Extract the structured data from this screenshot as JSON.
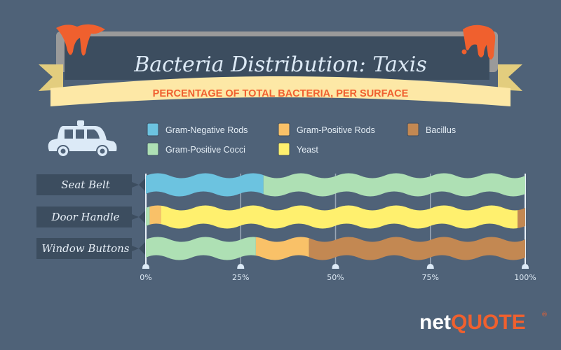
{
  "chart_data": {
    "type": "bar",
    "orientation": "horizontal",
    "stacked": true,
    "title": "Bacteria Distribution: Taxis",
    "subtitle": "PERCENTAGE OF TOTAL BACTERIA, PER SURFACE",
    "categories": [
      "Seat Belt",
      "Door Handle",
      "Window Buttons"
    ],
    "series": [
      {
        "name": "Gram-Negative Rods",
        "color": "#6cc3e0",
        "values": [
          31,
          0,
          0
        ]
      },
      {
        "name": "Gram-Positive Cocci",
        "color": "#aee0b4",
        "values": [
          69,
          1,
          29
        ]
      },
      {
        "name": "Gram-Positive Rods",
        "color": "#f9c168",
        "values": [
          0,
          3,
          14
        ]
      },
      {
        "name": "Yeast",
        "color": "#fff06e",
        "values": [
          0,
          94,
          0
        ]
      },
      {
        "name": "Bacillus",
        "color": "#c38852",
        "values": [
          0,
          2,
          57
        ]
      }
    ],
    "legend_order": [
      "Gram-Negative Rods",
      "Gram-Positive Rods",
      "Bacillus",
      "Gram-Positive Cocci",
      "Yeast"
    ],
    "xlim": [
      0,
      100
    ],
    "xticks": [
      "0%",
      "25%",
      "50%",
      "75%",
      "100%"
    ],
    "grid": true,
    "legend_placement": "top"
  },
  "icon": "taxi-icon",
  "brand": {
    "part1": "net",
    "part2": "QUOTE",
    "mark": "®"
  }
}
